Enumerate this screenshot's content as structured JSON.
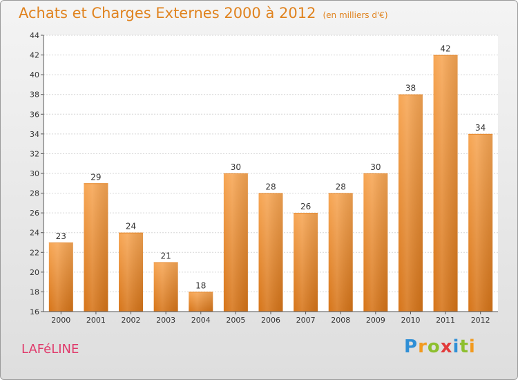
{
  "header": {
    "title": "Achats et Charges Externes 2000 à 2012",
    "subtitle": "(en milliers d'€)"
  },
  "footer": {
    "commune": "LAFéLINE",
    "logo": "Proxiti"
  },
  "colors": {
    "bar_top": "#f7a654",
    "bar_bottom": "#d67418",
    "title": "#e0831f",
    "commune": "#e03a6b"
  },
  "chart_data": {
    "type": "bar",
    "title": "Achats et Charges Externes 2000 à 2012",
    "categories": [
      "2000",
      "2001",
      "2002",
      "2003",
      "2004",
      "2005",
      "2006",
      "2007",
      "2008",
      "2009",
      "2010",
      "2011",
      "2012"
    ],
    "values": [
      23,
      29,
      24,
      21,
      18,
      30,
      28,
      26,
      28,
      30,
      38,
      42,
      34
    ],
    "ylim": [
      16,
      44
    ],
    "yticks": [
      16,
      18,
      20,
      22,
      24,
      26,
      28,
      30,
      32,
      34,
      36,
      38,
      40,
      42,
      44
    ],
    "grid": true
  }
}
